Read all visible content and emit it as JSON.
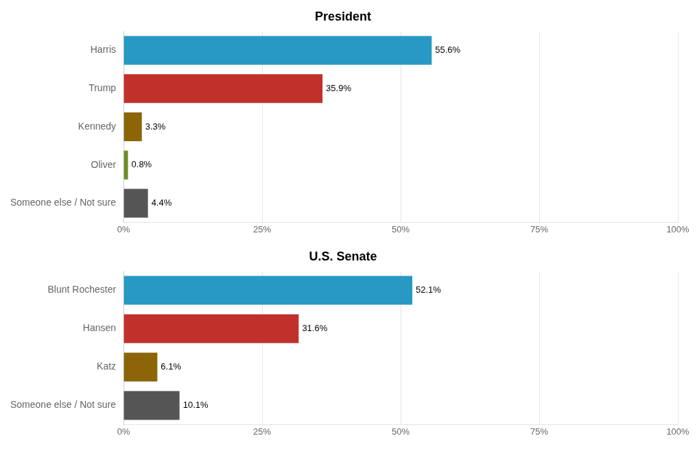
{
  "chart_data": [
    {
      "type": "bar",
      "orientation": "horizontal",
      "title": "President",
      "categories": [
        "Harris",
        "Trump",
        "Kennedy",
        "Oliver",
        "Someone else / Not sure"
      ],
      "values": [
        55.6,
        35.9,
        3.3,
        0.8,
        4.4
      ],
      "value_labels": [
        "55.6%",
        "35.9%",
        "3.3%",
        "0.8%",
        "4.4%"
      ],
      "colors": [
        "#2899C5",
        "#C0312B",
        "#8B6508",
        "#6B8E23",
        "#555555"
      ],
      "data_labels": true,
      "xlim": [
        0,
        100
      ],
      "xticks": [
        {
          "value": 0,
          "label": "0%"
        },
        {
          "value": 25,
          "label": "25%"
        },
        {
          "value": 50,
          "label": "50%"
        },
        {
          "value": 75,
          "label": "75%"
        },
        {
          "value": 100,
          "label": "100%"
        }
      ],
      "grid": "x"
    },
    {
      "type": "bar",
      "orientation": "horizontal",
      "title": "U.S. Senate",
      "categories": [
        "Blunt Rochester",
        "Hansen",
        "Katz",
        "Someone else / Not sure"
      ],
      "values": [
        52.1,
        31.6,
        6.1,
        10.1
      ],
      "value_labels": [
        "52.1%",
        "31.6%",
        "6.1%",
        "10.1%"
      ],
      "colors": [
        "#2899C5",
        "#C0312B",
        "#8B6508",
        "#555555"
      ],
      "data_labels": true,
      "xlim": [
        0,
        100
      ],
      "xticks": [
        {
          "value": 0,
          "label": "0%"
        },
        {
          "value": 25,
          "label": "25%"
        },
        {
          "value": 50,
          "label": "50%"
        },
        {
          "value": 75,
          "label": "75%"
        },
        {
          "value": 100,
          "label": "100%"
        }
      ],
      "grid": "x"
    }
  ]
}
